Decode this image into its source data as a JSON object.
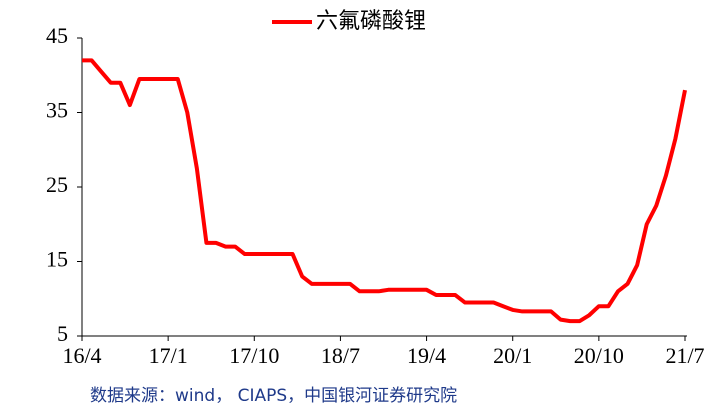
{
  "chart_data": {
    "type": "line",
    "series": [
      {
        "name": "六氟磷酸锂",
        "color": "#ff0000",
        "values": [
          42,
          42,
          40.5,
          39,
          39,
          36,
          39.5,
          39.5,
          39.5,
          39.5,
          39.5,
          35,
          27.5,
          17.5,
          17.5,
          17,
          17,
          16,
          16,
          16,
          16,
          16,
          16,
          13,
          12,
          12,
          12,
          12,
          12,
          11,
          11,
          11,
          11.2,
          11.2,
          11.2,
          11.2,
          11.2,
          10.5,
          10.5,
          10.5,
          9.5,
          9.5,
          9.5,
          9.5,
          9,
          8.5,
          8.3,
          8.3,
          8.3,
          8.3,
          7.2,
          7,
          7,
          7.8,
          9,
          9,
          11,
          12,
          14.5,
          20,
          22.5,
          26.5,
          31.5,
          38
        ]
      }
    ],
    "x": [
      "16/4",
      "16/5",
      "16/6",
      "16/7",
      "16/8",
      "16/9",
      "16/10",
      "16/11",
      "16/12",
      "17/1",
      "17/2",
      "17/3",
      "17/4",
      "17/5",
      "17/6",
      "17/7",
      "17/8",
      "17/9",
      "17/10",
      "17/11",
      "17/12",
      "18/1",
      "18/2",
      "18/3",
      "18/4",
      "18/5",
      "18/6",
      "18/7",
      "18/8",
      "18/9",
      "18/10",
      "18/11",
      "18/12",
      "19/1",
      "19/2",
      "19/3",
      "19/4",
      "19/5",
      "19/6",
      "19/7",
      "19/8",
      "19/9",
      "19/10",
      "19/11",
      "19/12",
      "20/1",
      "20/2",
      "20/3",
      "20/4",
      "20/5",
      "20/6",
      "20/7",
      "20/8",
      "20/9",
      "20/10",
      "20/11",
      "20/12",
      "21/1",
      "21/2",
      "21/3",
      "21/4",
      "21/5",
      "21/6",
      "21/7"
    ],
    "xticks": [
      "16/4",
      "17/1",
      "17/10",
      "18/7",
      "19/4",
      "20/1",
      "20/10",
      "21/7"
    ],
    "ylim": [
      5,
      45
    ],
    "yticks": [
      5,
      15,
      25,
      35,
      45
    ],
    "source": "数据来源：wind， CIAPS，中国银河证券研究院"
  }
}
